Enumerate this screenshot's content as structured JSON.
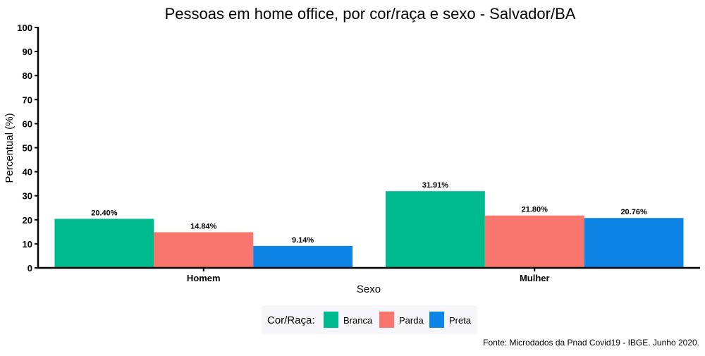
{
  "chart_data": {
    "type": "bar",
    "title": "Pessoas em home office, por cor/raça e sexo - Salvador/BA",
    "xlabel": "Sexo",
    "ylabel": "Percentual (%)",
    "ylim": [
      0,
      100
    ],
    "yticks": [
      0,
      10,
      20,
      30,
      40,
      50,
      60,
      70,
      80,
      90,
      100
    ],
    "categories": [
      "Homem",
      "Mulher"
    ],
    "series": [
      {
        "name": "Branca",
        "color": "#00BA8F",
        "values": [
          20.4,
          31.91
        ],
        "labels": [
          "20.40%",
          "31.91%"
        ]
      },
      {
        "name": "Parda",
        "color": "#F8766D",
        "values": [
          14.84,
          21.8
        ],
        "labels": [
          "14.84%",
          "21.80%"
        ]
      },
      {
        "name": "Preta",
        "color": "#0E84E6",
        "values": [
          9.14,
          20.76
        ],
        "labels": [
          "9.14%",
          "20.76%"
        ]
      }
    ],
    "legend": {
      "title": "Cor/Raça:",
      "position": "bottom"
    },
    "grid": false,
    "caption": "Fonte: Microdados da Pnad Covid19 - IBGE. Junho 2020."
  }
}
